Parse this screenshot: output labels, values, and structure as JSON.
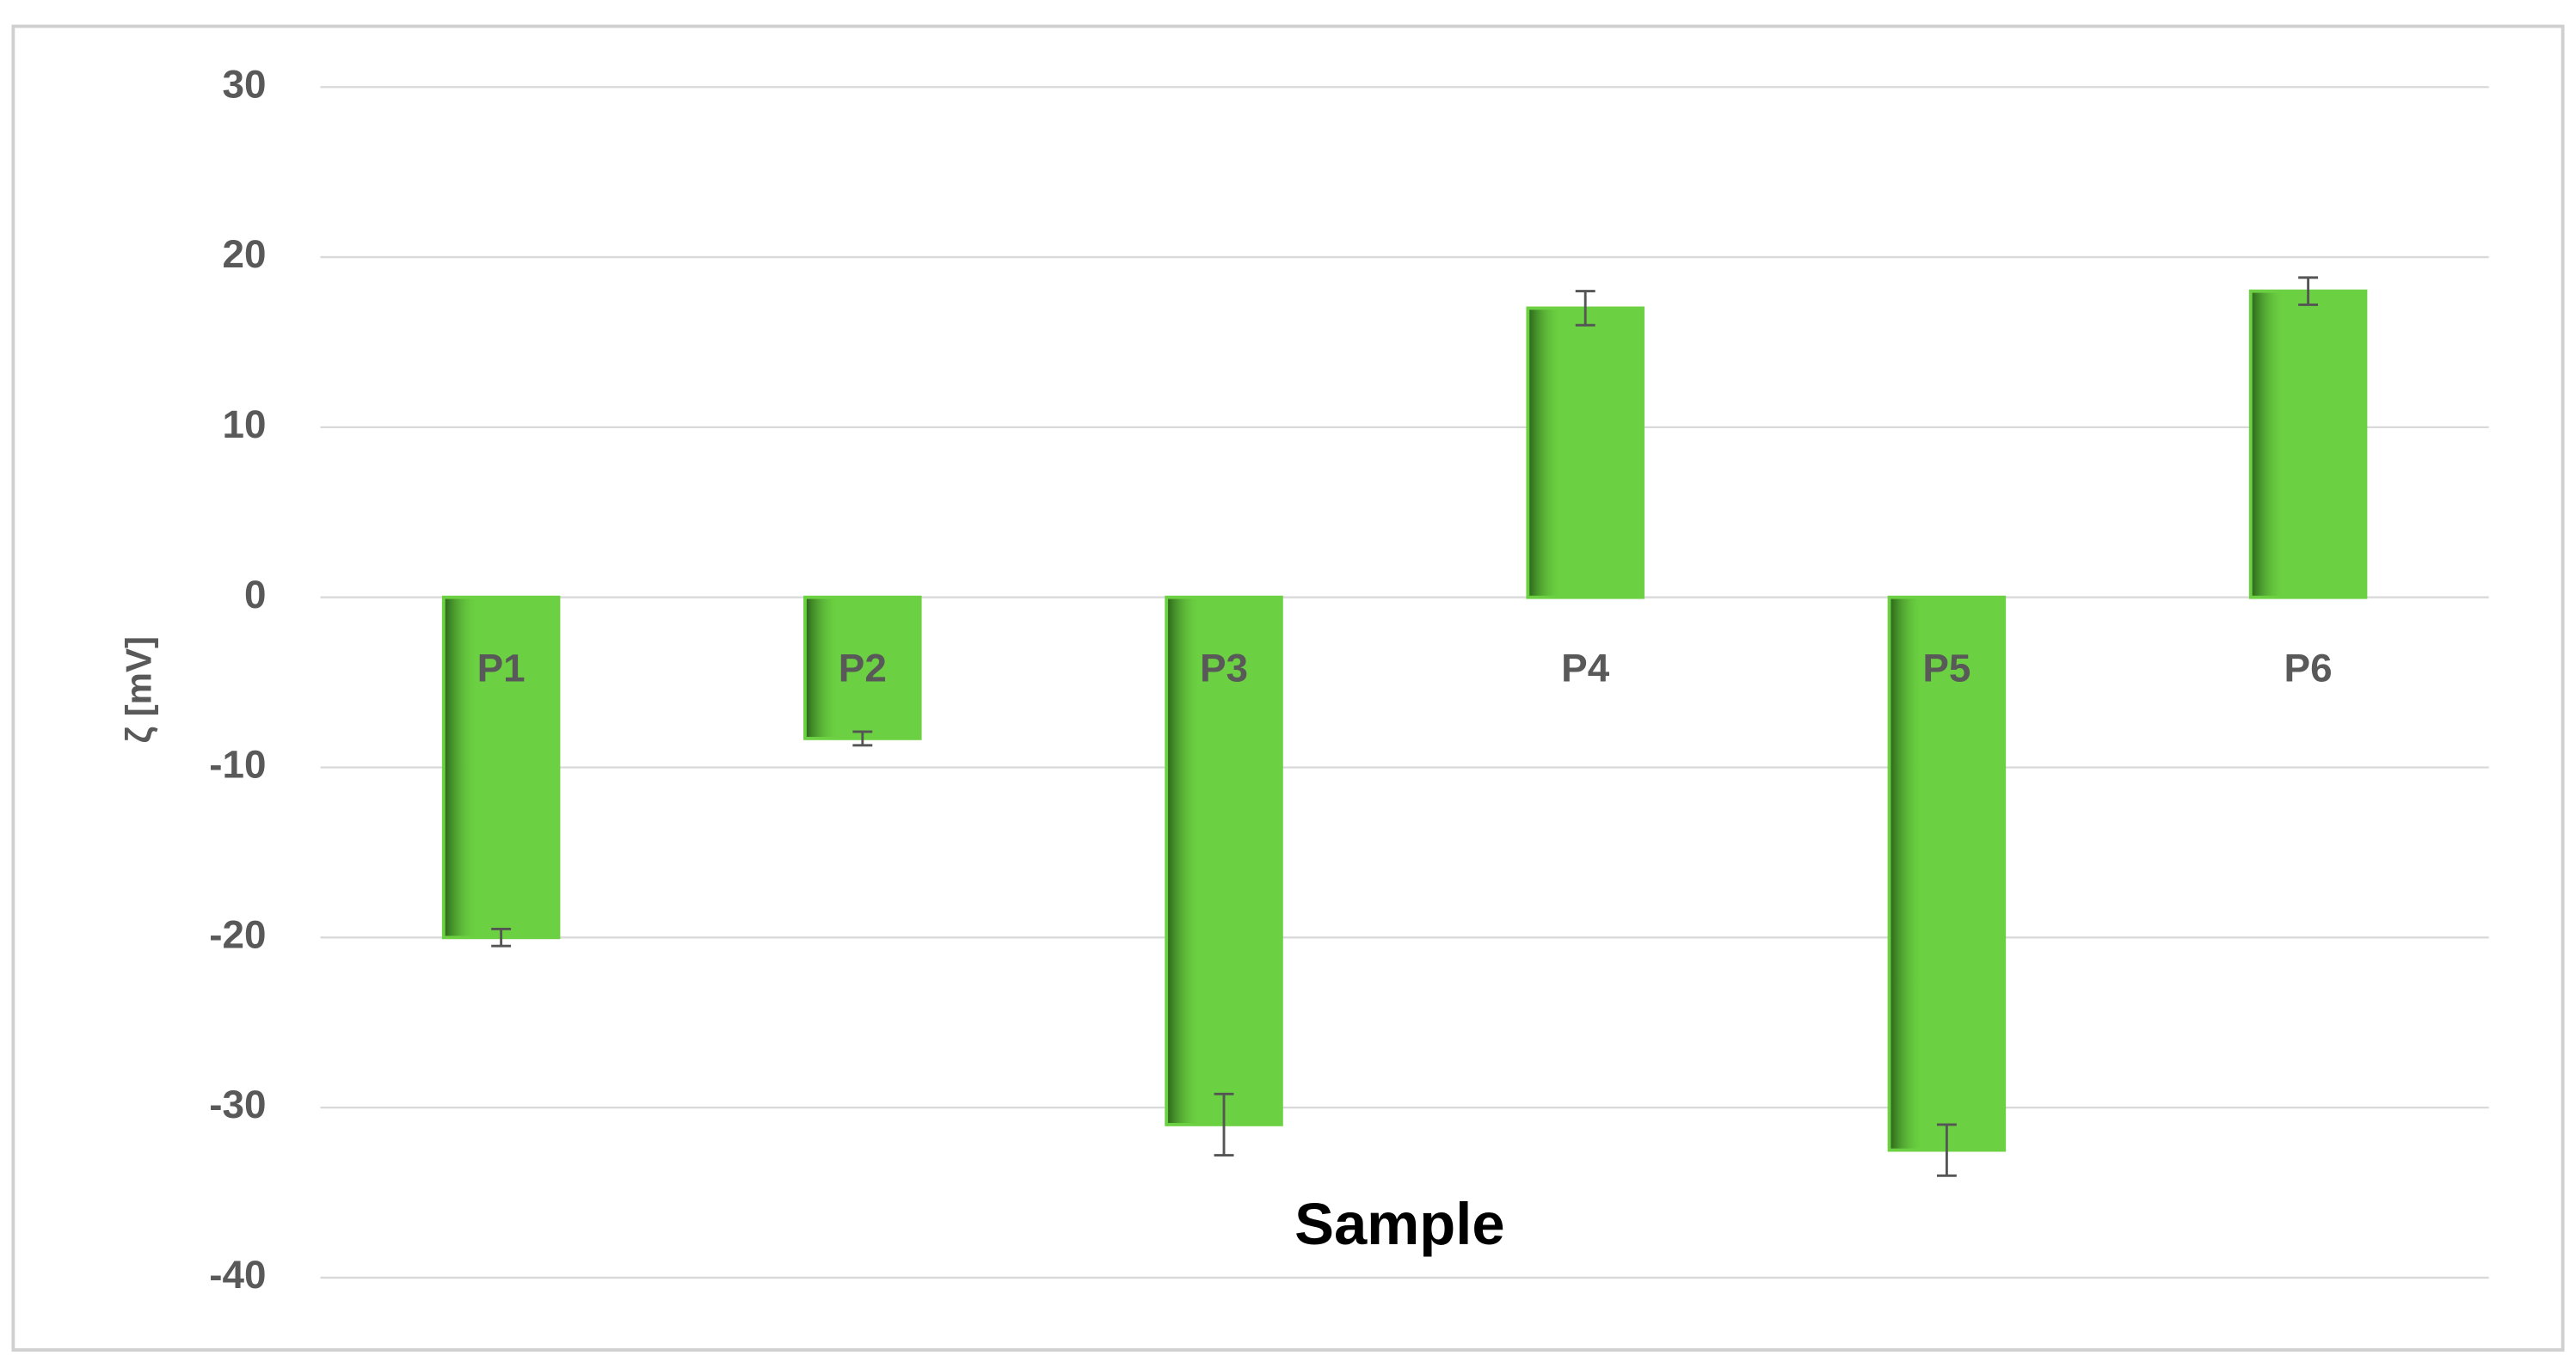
{
  "chart_data": {
    "type": "bar",
    "categories": [
      "P1",
      "P2",
      "P3",
      "P4",
      "P5",
      "P6"
    ],
    "values": [
      -20,
      -8.3,
      -31,
      17,
      -32.5,
      18
    ],
    "errors": [
      0.5,
      0.4,
      1.8,
      1,
      1.5,
      0.8
    ],
    "color": "#6cd142",
    "y_label": "ζ [mV]",
    "x_label": "Sample",
    "ylim": [
      -40,
      30
    ],
    "yticks": [
      -40,
      -30,
      -20,
      -10,
      0,
      10,
      20,
      30
    ],
    "grid": true
  }
}
